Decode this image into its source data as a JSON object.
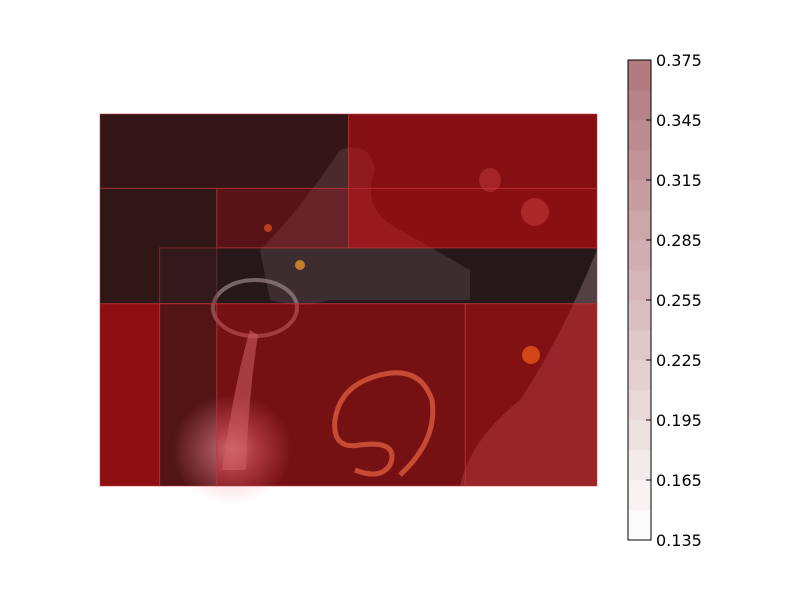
{
  "chart_data": {
    "type": "heatmap",
    "title": "",
    "xlabel": "",
    "ylabel": "",
    "background": "night photograph of motorcycles with a hose on the ground",
    "colormap": {
      "name": "Reds",
      "low": "#ffffff",
      "high": "#b1767c"
    },
    "colorbar": {
      "range": [
        0.135,
        0.375
      ],
      "ticks": [
        "0.375",
        "0.345",
        "0.315",
        "0.285",
        "0.255",
        "0.225",
        "0.195",
        "0.165",
        "0.135"
      ],
      "levels": 16
    },
    "image_extent": {
      "x_range": [
        0,
        1
      ],
      "y_range": [
        0,
        1
      ]
    },
    "regions": [
      {
        "x0": 0.0,
        "x1": 0.5,
        "y0": 0.0,
        "y1": 0.2,
        "value": 0.19
      },
      {
        "x0": 0.5,
        "x1": 1.0,
        "y0": 0.0,
        "y1": 0.2,
        "value": 0.335
      },
      {
        "x0": 0.0,
        "x1": 0.235,
        "y0": 0.2,
        "y1": 0.51,
        "value": 0.17
      },
      {
        "x0": 0.235,
        "x1": 0.5,
        "y0": 0.2,
        "y1": 0.36,
        "value": 0.265
      },
      {
        "x0": 0.5,
        "x1": 1.0,
        "y0": 0.2,
        "y1": 0.36,
        "value": 0.345
      },
      {
        "x0": 0.12,
        "x1": 1.0,
        "y0": 0.36,
        "y1": 0.51,
        "value": 0.14
      },
      {
        "x0": 0.0,
        "x1": 0.12,
        "y0": 0.51,
        "y1": 1.0,
        "value": 0.35
      },
      {
        "x0": 0.12,
        "x1": 0.235,
        "y0": 0.51,
        "y1": 1.0,
        "value": 0.26
      },
      {
        "x0": 0.235,
        "x1": 0.735,
        "y0": 0.51,
        "y1": 1.0,
        "value": 0.315
      },
      {
        "x0": 0.735,
        "x1": 1.0,
        "y0": 0.51,
        "y1": 1.0,
        "value": 0.33
      }
    ]
  }
}
